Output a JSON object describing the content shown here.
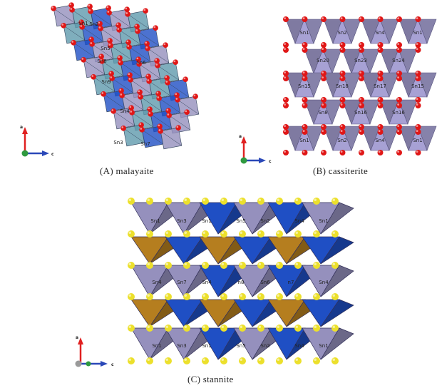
{
  "panels": {
    "a": {
      "caption": "(A)  malayaite",
      "labels": [
        "Sn1",
        "Sn2",
        "Sn3",
        "Sn4",
        "Sn5",
        "Sn6",
        "Sn7",
        "Sn8",
        "Sn9"
      ],
      "axes": {
        "a": "a",
        "c": "c"
      }
    },
    "b": {
      "caption": "(B)  cassiterite",
      "labels": [
        "Sn1",
        "Sn2",
        "Sn4",
        "Sn1",
        "Sn20",
        "Sn23",
        "Sn24",
        "Sn15",
        "Sn18",
        "Sn17",
        "Sn15",
        "Sn8",
        "Sn16",
        "Sn16",
        "Sn1",
        "Sn2",
        "Sn4",
        "Sn1"
      ],
      "axes": {
        "a": "a",
        "c": "c"
      }
    },
    "c": {
      "caption": "(C)  stannite",
      "labels": [
        "Sn1",
        "Sn3",
        "Sn1",
        "Sn5",
        "Sn2",
        "Sn4",
        "Sn1",
        "Sn4",
        "Sn7",
        "Sn4",
        "n8",
        "Sn6",
        "n7",
        "Sn4",
        "Sn1",
        "Sn3",
        "Sn1",
        "Sn5",
        "Sn2",
        "Sn4",
        "Sn1"
      ],
      "axes": {
        "a": "a",
        "c": "c"
      }
    }
  },
  "colors": {
    "sn_polyhedra": "#9590bd",
    "ca_polyhedra": "#5f9aad",
    "si_tetrahedra": "#1f4fc4",
    "fe_tetrahedra": "#b57e1f",
    "oxygen": "#e01717",
    "sulfur": "#ece02c"
  }
}
